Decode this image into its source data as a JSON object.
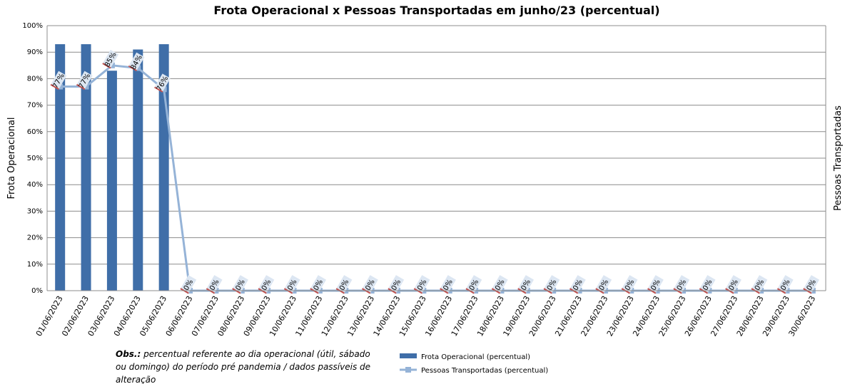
{
  "chart_data": {
    "type": "bar_line",
    "title": "Frota Operacional x Pessoas Transportadas em junho/23 (percentual)",
    "y_label": "Frota Operacional",
    "y2_label": "Pessoas Transportadas",
    "categories": [
      "01/06/2023",
      "02/06/2023",
      "03/06/2023",
      "04/06/2023",
      "05/06/2023",
      "06/06/2023",
      "07/06/2023",
      "08/06/2023",
      "09/06/2023",
      "10/06/2023",
      "11/06/2023",
      "12/06/2023",
      "13/06/2023",
      "14/06/2023",
      "15/06/2023",
      "16/06/2023",
      "17/06/2023",
      "18/06/2023",
      "19/06/2023",
      "20/06/2023",
      "21/06/2023",
      "22/06/2023",
      "23/06/2023",
      "24/06/2023",
      "25/06/2023",
      "26/06/2023",
      "27/06/2023",
      "28/06/2023",
      "29/06/2023",
      "30/06/2023"
    ],
    "series": [
      {
        "name": "Frota Operacional (percentual)",
        "kind": "bar",
        "color": "#3f6ea8",
        "values": [
          93,
          93,
          83,
          91,
          93,
          0,
          0,
          0,
          0,
          0,
          0,
          0,
          0,
          0,
          0,
          0,
          0,
          0,
          0,
          0,
          0,
          0,
          0,
          0,
          0,
          0,
          0,
          0,
          0,
          0
        ]
      },
      {
        "name": "Pessoas Transportadas (percentual)",
        "kind": "line",
        "color": "#95b3d7",
        "values": [
          77,
          77,
          85,
          84,
          76,
          0,
          0,
          0,
          0,
          0,
          0,
          0,
          0,
          0,
          0,
          0,
          0,
          0,
          0,
          0,
          0,
          0,
          0,
          0,
          0,
          0,
          0,
          0,
          0,
          0
        ],
        "value_labels": [
          "77%",
          "77%",
          "85%",
          "84%",
          "76%",
          "0%",
          "0%",
          "0%",
          "0%",
          "0%",
          "0%",
          "0%",
          "0%",
          "0%",
          "0%",
          "0%",
          "0%",
          "0%",
          "0%",
          "0%",
          "0%",
          "0%",
          "0%",
          "0%",
          "0%",
          "0%",
          "0%",
          "0%",
          "0%",
          "0%"
        ]
      }
    ],
    "ylim": [
      0,
      100
    ],
    "yticks": [
      {
        "value": 0,
        "label": "0%"
      },
      {
        "value": 10,
        "label": "10%"
      },
      {
        "value": 20,
        "label": "20%"
      },
      {
        "value": 30,
        "label": "30%"
      },
      {
        "value": 40,
        "label": "40%"
      },
      {
        "value": 50,
        "label": "50%"
      },
      {
        "value": 60,
        "label": "60%"
      },
      {
        "value": 70,
        "label": "70%"
      },
      {
        "value": 80,
        "label": "80%"
      },
      {
        "value": 90,
        "label": "90%"
      },
      {
        "value": 100,
        "label": "100%"
      }
    ],
    "grid": true,
    "note_label": "Obs.:",
    "note": "percentual referente ao dia operacional (útil, sábado ou domingo) do período pré pandemia / dados passíveis de alteração"
  }
}
